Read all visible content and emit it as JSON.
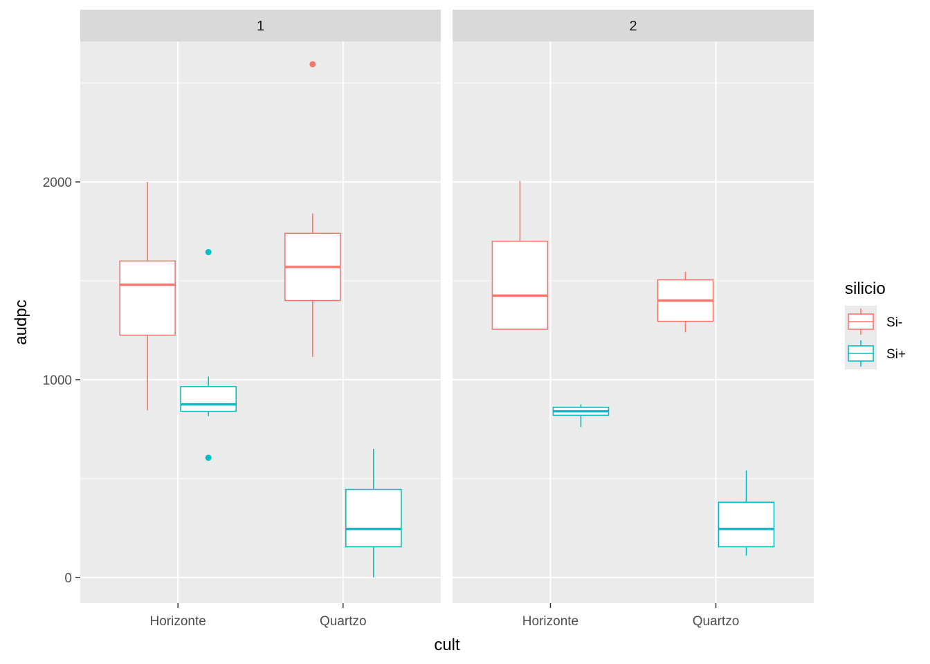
{
  "chart_data": {
    "type": "boxplot",
    "xlabel": "cult",
    "ylabel": "audpc",
    "ylim": [
      -130,
      2710
    ],
    "y_ticks": [
      0,
      1000,
      2000
    ],
    "y_tick_labels": [
      "0",
      "1000",
      "2000"
    ],
    "y_minor_ticks": [
      500,
      1500,
      2500
    ],
    "categories": [
      "Horizonte",
      "Quartzo"
    ],
    "facets": [
      "1",
      "2"
    ],
    "legend": {
      "title": "silicio",
      "position": "right",
      "entries": [
        {
          "label": "Si-",
          "color": "#F8766D"
        },
        {
          "label": "Si+",
          "color": "#00BFC4"
        }
      ]
    },
    "panel_background": "#EBEBEB",
    "strip_background": "#D9D9D9",
    "grid": true,
    "boxes": [
      {
        "facet": "1",
        "category": "Horizonte",
        "group": "Si-",
        "whisker_low": 845,
        "q1": 1225,
        "median": 1480,
        "q3": 1600,
        "whisker_high": 2000,
        "outliers": []
      },
      {
        "facet": "1",
        "category": "Horizonte",
        "group": "Si+",
        "whisker_low": 815,
        "q1": 840,
        "median": 875,
        "q3": 965,
        "whisker_high": 1015,
        "outliers": [
          1645,
          605
        ]
      },
      {
        "facet": "1",
        "category": "Quartzo",
        "group": "Si-",
        "whisker_low": 1115,
        "q1": 1400,
        "median": 1570,
        "q3": 1740,
        "whisker_high": 1840,
        "outliers": [
          2595
        ]
      },
      {
        "facet": "1",
        "category": "Quartzo",
        "group": "Si+",
        "whisker_low": 0,
        "q1": 155,
        "median": 245,
        "q3": 445,
        "whisker_high": 650,
        "outliers": []
      },
      {
        "facet": "2",
        "category": "Horizonte",
        "group": "Si-",
        "whisker_low": 1255,
        "q1": 1255,
        "median": 1425,
        "q3": 1700,
        "whisker_high": 2005,
        "outliers": []
      },
      {
        "facet": "2",
        "category": "Horizonte",
        "group": "Si+",
        "whisker_low": 760,
        "q1": 820,
        "median": 840,
        "q3": 860,
        "whisker_high": 875,
        "outliers": []
      },
      {
        "facet": "2",
        "category": "Quartzo",
        "group": "Si-",
        "whisker_low": 1240,
        "q1": 1295,
        "median": 1400,
        "q3": 1505,
        "whisker_high": 1545,
        "outliers": []
      },
      {
        "facet": "2",
        "category": "Quartzo",
        "group": "Si+",
        "whisker_low": 110,
        "q1": 155,
        "median": 245,
        "q3": 380,
        "whisker_high": 540,
        "outliers": []
      }
    ]
  }
}
